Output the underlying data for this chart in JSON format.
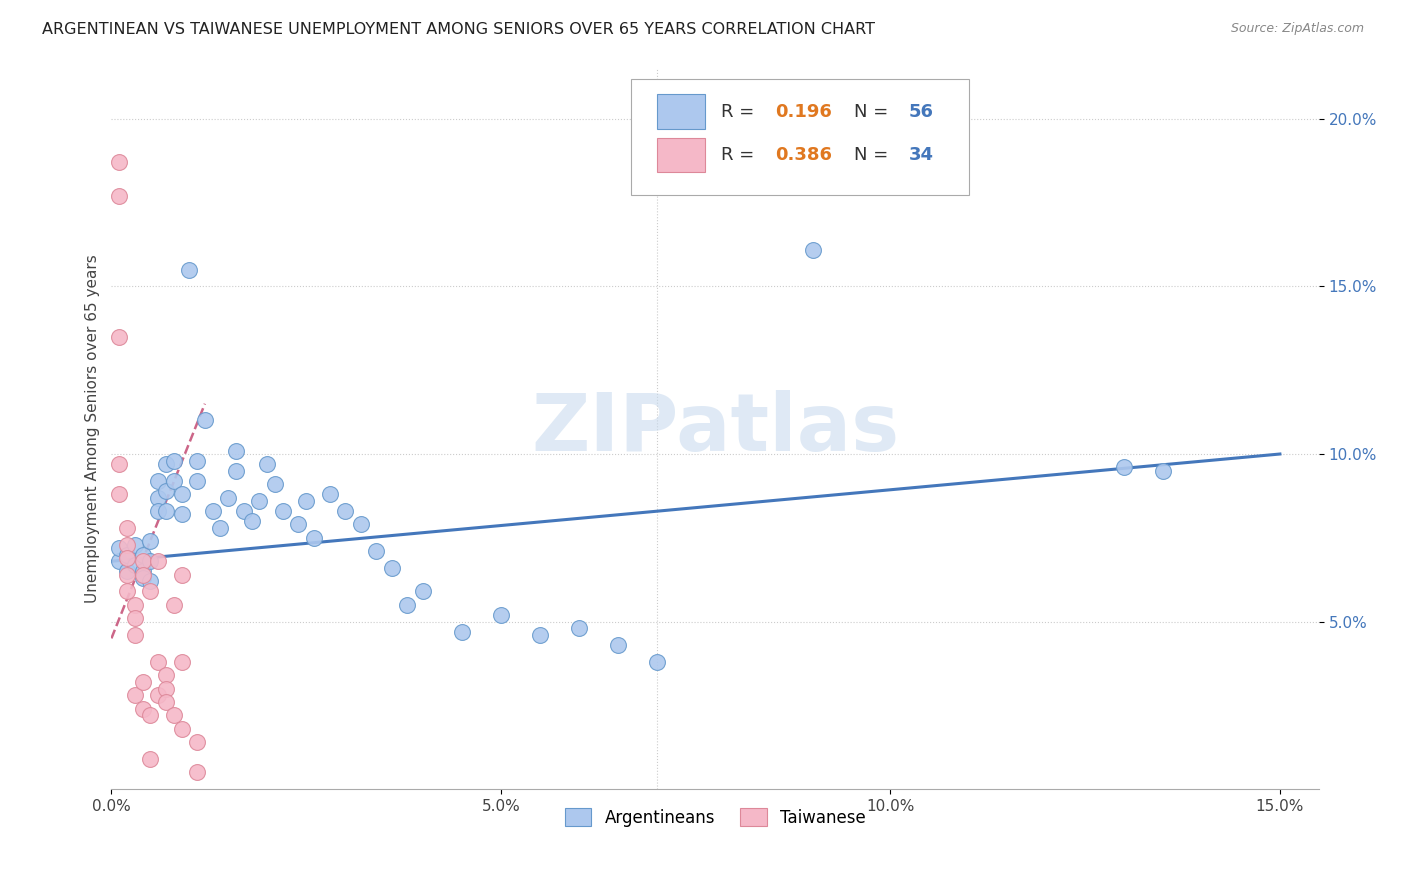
{
  "title": "ARGENTINEAN VS TAIWANESE UNEMPLOYMENT AMONG SENIORS OVER 65 YEARS CORRELATION CHART",
  "source": "Source: ZipAtlas.com",
  "ylabel": "Unemployment Among Seniors over 65 years",
  "xlim": [
    0.0,
    0.155
  ],
  "ylim": [
    0.0,
    0.215
  ],
  "x_ticks": [
    0.0,
    0.05,
    0.1,
    0.15
  ],
  "x_tick_labels": [
    "0.0%",
    "5.0%",
    "10.0%",
    "15.0%"
  ],
  "y_ticks": [
    0.05,
    0.1,
    0.15,
    0.2
  ],
  "y_tick_labels": [
    "5.0%",
    "10.0%",
    "15.0%",
    "20.0%"
  ],
  "watermark": "ZIPatlas",
  "argentinean_color": "#adc8ee",
  "taiwanese_color": "#f5b8c8",
  "argentinean_edge_color": "#6699cc",
  "taiwanese_edge_color": "#dd8899",
  "argentinean_line_color": "#4477bb",
  "taiwanese_line_color": "#cc6688",
  "R_arg": 0.196,
  "N_arg": 56,
  "R_tai": 0.386,
  "N_tai": 34,
  "arg_x": [
    0.001,
    0.001,
    0.002,
    0.002,
    0.003,
    0.003,
    0.004,
    0.004,
    0.004,
    0.005,
    0.005,
    0.005,
    0.006,
    0.006,
    0.006,
    0.007,
    0.007,
    0.007,
    0.008,
    0.008,
    0.009,
    0.009,
    0.01,
    0.011,
    0.011,
    0.012,
    0.013,
    0.014,
    0.015,
    0.016,
    0.016,
    0.017,
    0.018,
    0.019,
    0.02,
    0.021,
    0.022,
    0.024,
    0.025,
    0.026,
    0.028,
    0.03,
    0.032,
    0.034,
    0.036,
    0.038,
    0.04,
    0.045,
    0.05,
    0.055,
    0.06,
    0.065,
    0.07,
    0.09,
    0.13,
    0.135
  ],
  "arg_y": [
    0.068,
    0.072,
    0.065,
    0.07,
    0.073,
    0.067,
    0.07,
    0.065,
    0.063,
    0.074,
    0.068,
    0.062,
    0.092,
    0.087,
    0.083,
    0.097,
    0.089,
    0.083,
    0.098,
    0.092,
    0.088,
    0.082,
    0.155,
    0.098,
    0.092,
    0.11,
    0.083,
    0.078,
    0.087,
    0.101,
    0.095,
    0.083,
    0.08,
    0.086,
    0.097,
    0.091,
    0.083,
    0.079,
    0.086,
    0.075,
    0.088,
    0.083,
    0.079,
    0.071,
    0.066,
    0.055,
    0.059,
    0.047,
    0.052,
    0.046,
    0.048,
    0.043,
    0.038,
    0.161,
    0.096,
    0.095
  ],
  "tai_x": [
    0.001,
    0.001,
    0.001,
    0.001,
    0.001,
    0.002,
    0.002,
    0.002,
    0.002,
    0.002,
    0.003,
    0.003,
    0.003,
    0.003,
    0.004,
    0.004,
    0.004,
    0.004,
    0.005,
    0.005,
    0.005,
    0.006,
    0.006,
    0.006,
    0.007,
    0.007,
    0.007,
    0.008,
    0.008,
    0.009,
    0.009,
    0.009,
    0.011,
    0.011
  ],
  "tai_y": [
    0.187,
    0.177,
    0.135,
    0.097,
    0.088,
    0.078,
    0.073,
    0.069,
    0.064,
    0.059,
    0.055,
    0.051,
    0.046,
    0.028,
    0.068,
    0.064,
    0.032,
    0.024,
    0.059,
    0.022,
    0.009,
    0.068,
    0.038,
    0.028,
    0.034,
    0.03,
    0.026,
    0.055,
    0.022,
    0.064,
    0.038,
    0.018,
    0.014,
    0.005
  ]
}
